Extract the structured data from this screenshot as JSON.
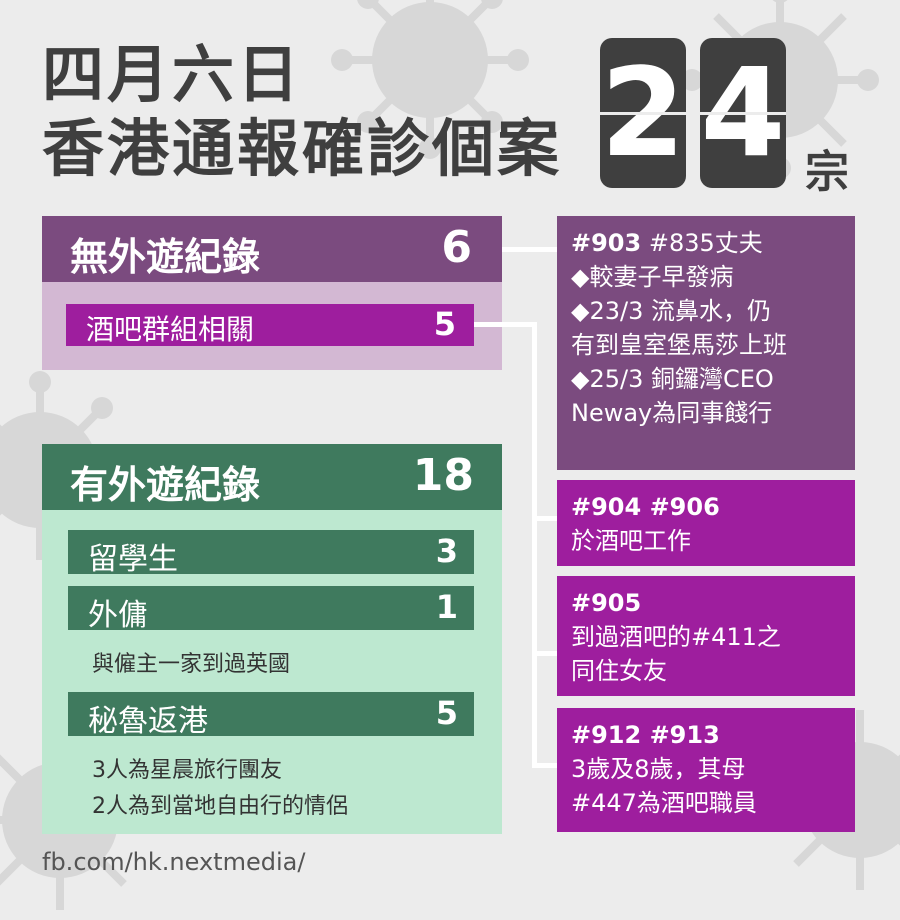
{
  "title": {
    "line1": "四月六日",
    "line2": "香港通報確診個案",
    "digit1": "2",
    "digit2": "4",
    "unit": "宗"
  },
  "no_travel": {
    "label": "無外遊紀錄",
    "count": "6",
    "sub": {
      "label": "酒吧群組相關",
      "count": "5"
    }
  },
  "travel": {
    "label": "有外遊紀錄",
    "count": "18",
    "items": [
      {
        "label": "留學生",
        "count": "3"
      },
      {
        "label": "外傭",
        "count": "1",
        "note": "與僱主一家到過英國"
      },
      {
        "label": "秘魯返港",
        "count": "5",
        "note1": "3人為星晨旅行團友",
        "note2": "2人為到當地自由行的情侶"
      }
    ]
  },
  "cases": [
    {
      "head_bold": "#903",
      "head_rest": " #835丈夫",
      "lines": [
        "◆較妻子早發病",
        "◆23/3 流鼻水，仍",
        "有到皇室堡馬莎上班",
        "◆25/3 銅鑼灣CEO",
        "Neway為同事餞行"
      ]
    },
    {
      "head_bold": "#904  #906",
      "lines": [
        "於酒吧工作"
      ]
    },
    {
      "head_bold": "#905",
      "lines": [
        "到過酒吧的#411之",
        "同住女友"
      ]
    },
    {
      "head_bold": "#912  #913",
      "lines": [
        "3歲及8歲，其母",
        "#447為酒吧職員"
      ]
    }
  ],
  "source": "fb.com/hk.nextmedia/",
  "colors": {
    "purple_dark": "#7b4b7f",
    "magenta": "#9e1e9e",
    "green_dark": "#3f7a5e",
    "green_light": "#bde8d0"
  }
}
